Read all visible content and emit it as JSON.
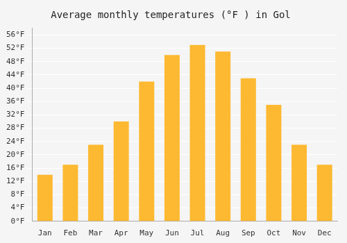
{
  "chart_data": {
    "type": "bar",
    "title": "Average monthly temperatures (°F ) in Gol",
    "categories": [
      "Jan",
      "Feb",
      "Mar",
      "Apr",
      "May",
      "Jun",
      "Jul",
      "Aug",
      "Sep",
      "Oct",
      "Nov",
      "Dec"
    ],
    "values": [
      14,
      17,
      23,
      30,
      42,
      50,
      53,
      51,
      43,
      35,
      23,
      17
    ],
    "color": "#FDB931",
    "ylim": [
      0,
      58
    ],
    "yticks": [
      {
        "value": 0,
        "label": "0°F"
      },
      {
        "value": 4,
        "label": "4°F"
      },
      {
        "value": 8,
        "label": "8°F"
      },
      {
        "value": 12,
        "label": "12°F"
      },
      {
        "value": 16,
        "label": "16°F"
      },
      {
        "value": 20,
        "label": "20°F"
      },
      {
        "value": 24,
        "label": "24°F"
      },
      {
        "value": 28,
        "label": "28°F"
      },
      {
        "value": 32,
        "label": "32°F"
      },
      {
        "value": 36,
        "label": "36°F"
      },
      {
        "value": 40,
        "label": "40°F"
      },
      {
        "value": 44,
        "label": "44°F"
      },
      {
        "value": 48,
        "label": "48°F"
      },
      {
        "value": 52,
        "label": "52°F"
      },
      {
        "value": 56,
        "label": "56°F"
      }
    ],
    "grid": true
  }
}
